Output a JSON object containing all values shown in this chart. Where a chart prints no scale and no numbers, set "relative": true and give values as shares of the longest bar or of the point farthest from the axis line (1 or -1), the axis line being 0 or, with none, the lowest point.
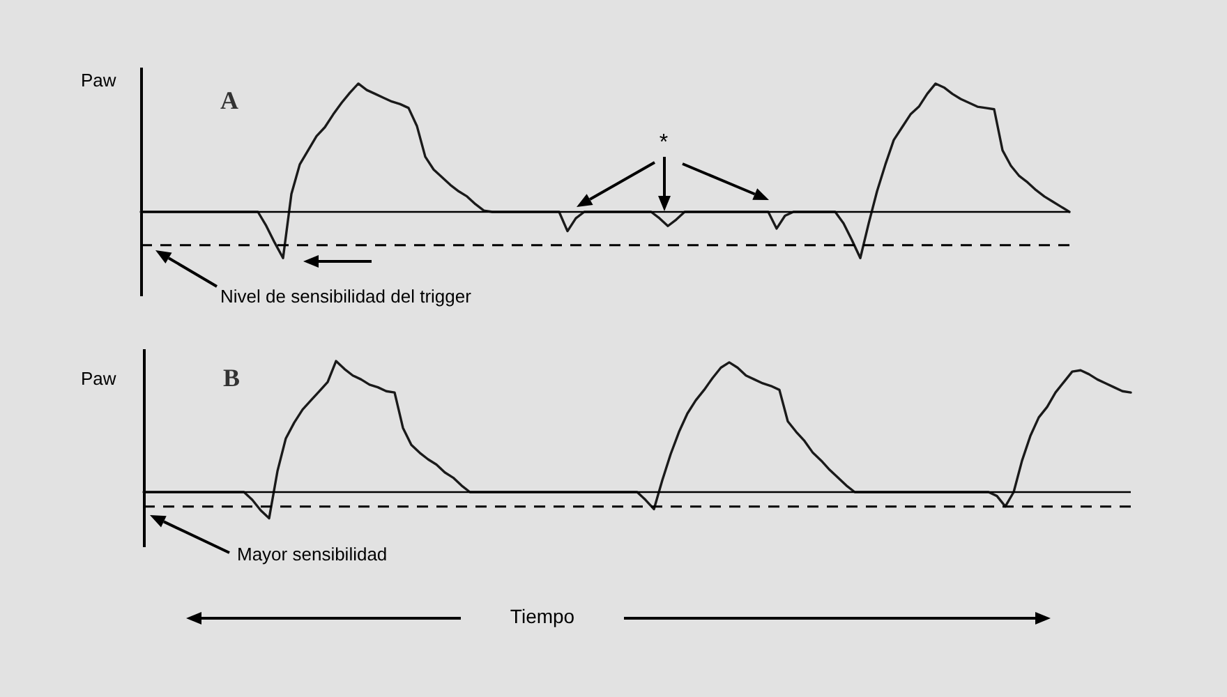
{
  "chart_data": [
    {
      "type": "line",
      "title": "A",
      "ylabel": "Paw",
      "relative": true,
      "categories": [
        null,
        null,
        null,
        null,
        null,
        null,
        null,
        null,
        null,
        null,
        null,
        null,
        null,
        null,
        null,
        null,
        null,
        null,
        null,
        null,
        null,
        null,
        null,
        null,
        null,
        null,
        null,
        null,
        null,
        null,
        null,
        null,
        null,
        null,
        null,
        null,
        null,
        null,
        null,
        null,
        null,
        null,
        null,
        null,
        null,
        null,
        null,
        null,
        null,
        null,
        null,
        null,
        null,
        null,
        null,
        null,
        null,
        null,
        null,
        null,
        null,
        null,
        null,
        null,
        null,
        null,
        null,
        null,
        null,
        null,
        null,
        null,
        null,
        null,
        null,
        null,
        null,
        null,
        null,
        null,
        null,
        null,
        null,
        null,
        null,
        null,
        null,
        null,
        null,
        null,
        null,
        null,
        null,
        null,
        null,
        null,
        null,
        null,
        null,
        null,
        null,
        null,
        null,
        null,
        null,
        null,
        null,
        null,
        null,
        null,
        null,
        null
      ],
      "series": [
        {
          "color": "#1a1a1a",
          "values": [
            0,
            0,
            0,
            0,
            0,
            0,
            0,
            0,
            0,
            0,
            0,
            0,
            0,
            0,
            0,
            -0.11,
            -0.24,
            -0.36,
            0.14,
            0.37,
            0.48,
            0.59,
            0.66,
            0.76,
            0.85,
            0.93,
            1,
            0.95,
            0.92,
            0.89,
            0.86,
            0.84,
            0.81,
            0.67,
            0.43,
            0.33,
            0.27,
            0.21,
            0.16,
            0.12,
            0.06,
            0.01,
            0,
            0,
            0,
            0,
            0,
            0,
            0,
            0,
            0,
            -0.15,
            -0.05,
            0,
            0,
            0,
            0,
            0,
            0,
            0,
            0,
            0,
            -0.05,
            -0.11,
            -0.06,
            0,
            0,
            0,
            0,
            0,
            0,
            0,
            0,
            0,
            0,
            0,
            -0.13,
            -0.03,
            0,
            0,
            0,
            0,
            0,
            0,
            -0.09,
            -0.22,
            -0.36,
            -0.09,
            0.16,
            0.37,
            0.56,
            0.66,
            0.76,
            0.82,
            0.92,
            1,
            0.97,
            0.92,
            0.88,
            0.85,
            0.82,
            0.81,
            0.8,
            0.48,
            0.36,
            0.28,
            0.23,
            0.17,
            0.12,
            0.08,
            0.04,
            0
          ]
        }
      ],
      "ref_lines": [
        {
          "axis": "y",
          "value": 0,
          "line_style": "solid",
          "color": "#000000"
        },
        {
          "axis": "y",
          "value": -0.26,
          "line_style": "dashed",
          "color": "#000000",
          "label": "Nivel de sensibilidad del trigger"
        }
      ],
      "annotations": [
        "*"
      ]
    },
    {
      "type": "line",
      "title": "B",
      "ylabel": "Paw",
      "xlabel": "Tiempo",
      "relative": true,
      "categories": [
        null,
        null,
        null,
        null,
        null,
        null,
        null,
        null,
        null,
        null,
        null,
        null,
        null,
        null,
        null,
        null,
        null,
        null,
        null,
        null,
        null,
        null,
        null,
        null,
        null,
        null,
        null,
        null,
        null,
        null,
        null,
        null,
        null,
        null,
        null,
        null,
        null,
        null,
        null,
        null,
        null,
        null,
        null,
        null,
        null,
        null,
        null,
        null,
        null,
        null,
        null,
        null,
        null,
        null,
        null,
        null,
        null,
        null,
        null,
        null,
        null,
        null,
        null,
        null,
        null,
        null,
        null,
        null,
        null,
        null,
        null,
        null,
        null,
        null,
        null,
        null,
        null,
        null,
        null,
        null,
        null,
        null,
        null,
        null,
        null,
        null,
        null,
        null,
        null,
        null,
        null,
        null,
        null,
        null,
        null,
        null,
        null,
        null,
        null,
        null,
        null,
        null,
        null,
        null,
        null,
        null,
        null,
        null,
        null,
        null,
        null,
        null,
        null,
        null,
        null,
        null,
        null,
        null,
        null
      ],
      "series": [
        {
          "color": "#1a1a1a",
          "values": [
            0,
            0,
            0,
            0,
            0,
            0,
            0,
            0,
            0,
            0,
            0,
            0,
            0,
            -0.06,
            -0.14,
            -0.2,
            0.16,
            0.41,
            0.53,
            0.63,
            0.7,
            0.77,
            0.84,
            1,
            0.94,
            0.89,
            0.86,
            0.82,
            0.8,
            0.77,
            0.76,
            0.49,
            0.36,
            0.3,
            0.25,
            0.21,
            0.15,
            0.11,
            0.05,
            0,
            0,
            0,
            0,
            0,
            0,
            0,
            0,
            0,
            0,
            0,
            0,
            0,
            0,
            0,
            0,
            0,
            0,
            0,
            0,
            0,
            -0.06,
            -0.13,
            0.09,
            0.29,
            0.46,
            0.6,
            0.7,
            0.78,
            0.87,
            0.95,
            0.99,
            0.95,
            0.89,
            0.86,
            0.83,
            0.81,
            0.78,
            0.54,
            0.46,
            0.39,
            0.3,
            0.24,
            0.17,
            0.11,
            0.05,
            0,
            0,
            0,
            0,
            0,
            0,
            0,
            0,
            0,
            0,
            0,
            0,
            0,
            0,
            0,
            0,
            0,
            -0.03,
            -0.11,
            0,
            0.24,
            0.43,
            0.57,
            0.65,
            0.76,
            0.84,
            0.92,
            0.93,
            0.9,
            0.86,
            0.83,
            0.8,
            0.77,
            0.76
          ]
        }
      ],
      "ref_lines": [
        {
          "axis": "y",
          "value": 0,
          "line_style": "solid",
          "color": "#000000"
        },
        {
          "axis": "y",
          "value": -0.11,
          "line_style": "dashed",
          "color": "#000000",
          "label": "Mayor sensibilidad"
        }
      ]
    }
  ]
}
